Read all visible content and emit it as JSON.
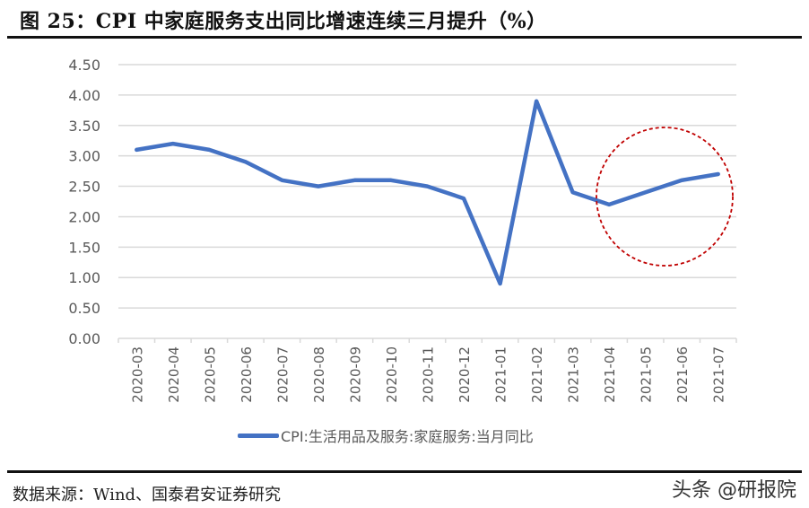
{
  "header": {
    "title": "图 25：CPI 中家庭服务支出同比增速连续三月提升（%）"
  },
  "footer": {
    "source": "数据来源：Wind、国泰君安证券研究",
    "watermark": "头条 @研报院"
  },
  "colors": {
    "series": "#4472c4",
    "grid": "#d9d9d9",
    "axis_text": "#595959",
    "highlight_circle": "#c00000"
  },
  "chart_data": {
    "type": "line",
    "title": "CPI 中家庭服务支出同比增速连续三月提升（%）",
    "xlabel": "",
    "ylabel": "",
    "ylim": [
      0,
      4.5
    ],
    "yticks": [
      "0.00",
      "0.50",
      "1.00",
      "1.50",
      "2.00",
      "2.50",
      "3.00",
      "3.50",
      "4.00",
      "4.50"
    ],
    "grid": true,
    "legend_position": "bottom",
    "categories": [
      "2020-03",
      "2020-04",
      "2020-05",
      "2020-06",
      "2020-07",
      "2020-08",
      "2020-09",
      "2020-10",
      "2020-11",
      "2020-12",
      "2021-01",
      "2021-02",
      "2021-03",
      "2021-04",
      "2021-05",
      "2021-06",
      "2021-07"
    ],
    "series": [
      {
        "name": "CPI:生活用品及服务:家庭服务:当月同比",
        "values": [
          3.1,
          3.2,
          3.1,
          2.9,
          2.6,
          2.5,
          2.6,
          2.6,
          2.5,
          2.3,
          0.9,
          3.9,
          2.4,
          2.2,
          2.4,
          2.6,
          2.7
        ]
      }
    ],
    "annotations": [
      {
        "type": "dashed-circle",
        "covers": [
          "2021-04",
          "2021-05",
          "2021-06",
          "2021-07"
        ]
      }
    ]
  }
}
